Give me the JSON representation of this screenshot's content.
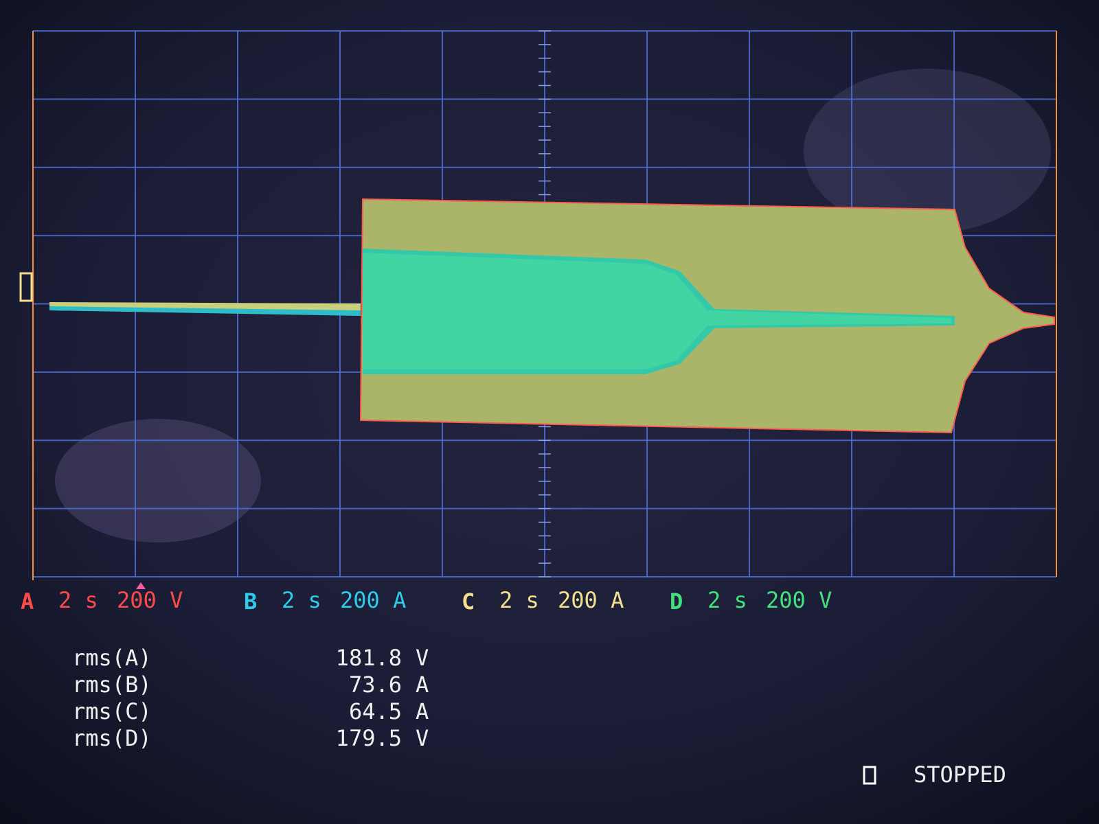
{
  "channels": [
    {
      "letter": "A",
      "timebase": "2 s",
      "scale": "200 V",
      "color": "#ff4a4a"
    },
    {
      "letter": "B",
      "timebase": "2 s",
      "scale": "200 A",
      "color": "#2fcbea"
    },
    {
      "letter": "C",
      "timebase": "2 s",
      "scale": "200 A",
      "color": "#f3e08e"
    },
    {
      "letter": "D",
      "timebase": "2 s",
      "scale": "200 V",
      "color": "#42e27c"
    }
  ],
  "measurements": [
    {
      "label": "rms(A)",
      "value": "181.8",
      "unit": "V"
    },
    {
      "label": "rms(B)",
      "value": "73.6",
      "unit": "A"
    },
    {
      "label": "rms(C)",
      "value": "64.5",
      "unit": "A"
    },
    {
      "label": "rms(D)",
      "value": "179.5",
      "unit": "V"
    }
  ],
  "status": "STOPPED"
}
